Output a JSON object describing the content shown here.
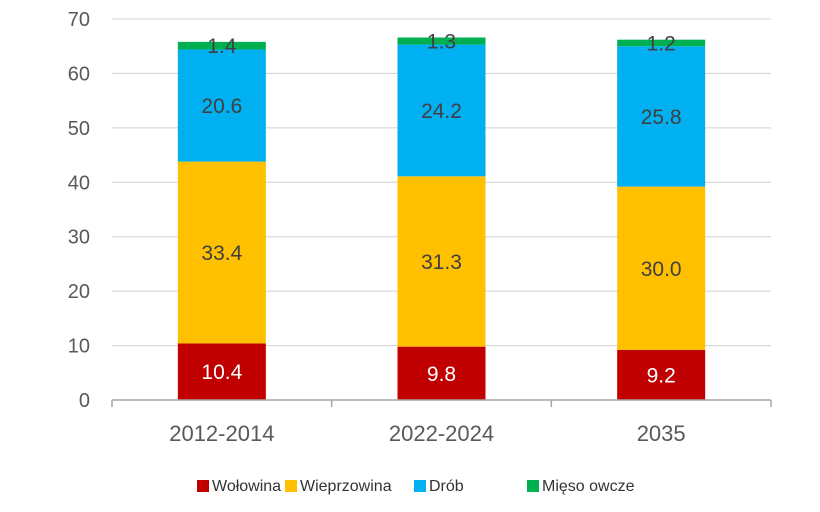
{
  "chart_data": {
    "type": "bar",
    "stacked": true,
    "categories": [
      "2012-2014",
      "2022-2024",
      "2035"
    ],
    "series": [
      {
        "name": "Wołowina",
        "values": [
          10.4,
          9.8,
          9.2
        ],
        "color": "#C00000",
        "label_color": "#ffffff"
      },
      {
        "name": "Wieprzowina",
        "values": [
          33.4,
          31.3,
          30.0
        ],
        "color": "#FFC000",
        "label_color": "#404040"
      },
      {
        "name": "Drób",
        "values": [
          20.6,
          24.2,
          25.8
        ],
        "color": "#00B0F0",
        "label_color": "#404040"
      },
      {
        "name": "Mięso owcze",
        "values": [
          1.4,
          1.3,
          1.2
        ],
        "color": "#00B050",
        "label_color": "#404040"
      }
    ],
    "data_labels": [
      [
        "10.4",
        "9.8",
        "9.2"
      ],
      [
        "33.4",
        "31.3",
        "30.0"
      ],
      [
        "20.6",
        "24.2",
        "25.8"
      ],
      [
        "1.4",
        "1.3",
        "1.2"
      ]
    ],
    "yticks": [
      "0",
      "10",
      "20",
      "30",
      "40",
      "50",
      "60",
      "70"
    ],
    "ylim": [
      0,
      70
    ],
    "grid": true,
    "legend_position": "bottom"
  }
}
